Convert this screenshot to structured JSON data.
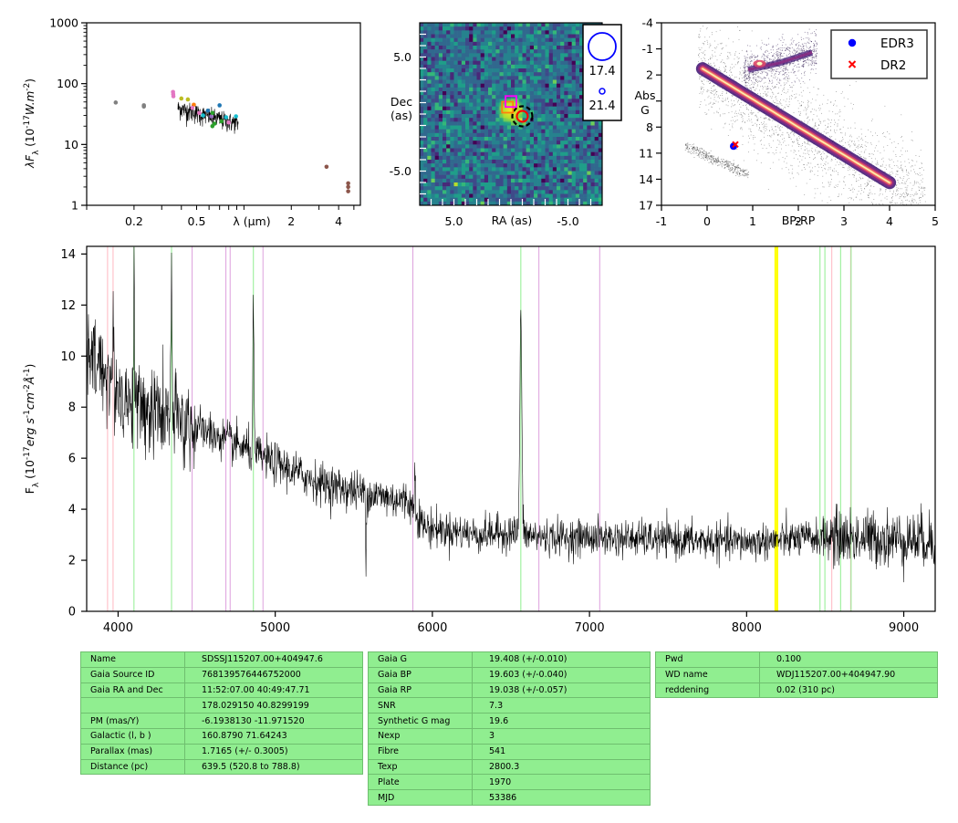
{
  "colors": {
    "spectrum_line": "#000000",
    "ha_lines": "#90ee90",
    "he_lines": "#dda0dd",
    "fe_lines": "#ffb6c1",
    "sky_band": "#ffff00",
    "table_bg": "#90ee90",
    "edr3_marker": "#0000ff",
    "dr2_marker": "#ff0000"
  },
  "chart_data": [
    {
      "type": "scatter",
      "panel": "sed",
      "xlabel": "λ (μm)",
      "ylabel": "λF_λ (10^-17 W.m^-2)",
      "xscale": "log",
      "yscale": "log",
      "xlim": [
        0.1,
        5.5
      ],
      "ylim": [
        1,
        1000
      ],
      "x_ticks": [
        0.2,
        0.5,
        2,
        4
      ],
      "x_tick_labels": [
        "0.2",
        "0.5",
        "2",
        "4"
      ],
      "y_ticks": [
        1,
        10,
        100,
        1000
      ],
      "y_tick_labels": [
        "1",
        "10",
        "100",
        "1000"
      ],
      "points": [
        {
          "x": 0.153,
          "y": 49,
          "color": "#808080"
        },
        {
          "x": 0.231,
          "y": 42,
          "color": "#808080"
        },
        {
          "x": 0.231,
          "y": 44,
          "color": "#808080"
        },
        {
          "x": 0.354,
          "y": 73,
          "color": "#e377c2"
        },
        {
          "x": 0.355,
          "y": 67,
          "color": "#e377c2"
        },
        {
          "x": 0.356,
          "y": 62,
          "color": "#e377c2"
        },
        {
          "x": 0.4,
          "y": 57,
          "color": "#bcbd22"
        },
        {
          "x": 0.44,
          "y": 55,
          "color": "#bcbd22"
        },
        {
          "x": 0.48,
          "y": 45,
          "color": "#ff7f0e"
        },
        {
          "x": 0.47,
          "y": 40,
          "color": "#e377c2"
        },
        {
          "x": 0.52,
          "y": 33,
          "color": "#e377c2"
        },
        {
          "x": 0.55,
          "y": 30,
          "color": "#17becf"
        },
        {
          "x": 0.59,
          "y": 36,
          "color": "#1f77b4"
        },
        {
          "x": 0.62,
          "y": 29,
          "color": "#9467bd"
        },
        {
          "x": 0.63,
          "y": 33,
          "color": "#2ca02c"
        },
        {
          "x": 0.63,
          "y": 20,
          "color": "#2ca02c"
        },
        {
          "x": 0.65,
          "y": 22,
          "color": "#2ca02c"
        },
        {
          "x": 0.7,
          "y": 44,
          "color": "#1f77b4"
        },
        {
          "x": 0.72,
          "y": 24,
          "color": "#2ca02c"
        },
        {
          "x": 0.77,
          "y": 28,
          "color": "#17becf"
        },
        {
          "x": 0.8,
          "y": 23,
          "color": "#e377c2"
        },
        {
          "x": 0.89,
          "y": 29,
          "color": "#17becf"
        },
        {
          "x": 3.35,
          "y": 4.3,
          "color": "#8c564b"
        },
        {
          "x": 4.6,
          "y": 2.3,
          "color": "#8c564b"
        },
        {
          "x": 4.6,
          "y": 2.0,
          "color": "#8c564b"
        },
        {
          "x": 4.6,
          "y": 1.7,
          "color": "#8c564b"
        }
      ],
      "spectrum_overlay": {
        "x_start": 0.38,
        "x_end": 0.92,
        "y_start": 40,
        "y_end": 22
      }
    },
    {
      "type": "heatmap",
      "panel": "image-cutout",
      "xlabel": "RA (as)",
      "ylabel": "Dec\n(as)",
      "xlim": [
        8,
        -8
      ],
      "ylim": [
        -8,
        8
      ],
      "x_tick_labels": [
        "5.0",
        "-5.0"
      ],
      "y_tick_labels": [
        "5.0",
        "-5.0"
      ],
      "source_marks": [
        {
          "shape": "dashed-circle",
          "x": -1.0,
          "y": -0.2,
          "color": "#000000"
        },
        {
          "shape": "circle",
          "x": -1.0,
          "y": -0.2,
          "color": "#ff0000"
        },
        {
          "shape": "square",
          "x": 0.3,
          "y": 0.6,
          "color": "#ff7f0e"
        },
        {
          "shape": "square",
          "x": 0.0,
          "y": 1.1,
          "color": "#ff00ff"
        }
      ],
      "magnitude_legend": [
        {
          "label": "17.4",
          "size": "large"
        },
        {
          "label": "21.4",
          "size": "small"
        }
      ]
    },
    {
      "type": "scatter",
      "panel": "hr-diagram",
      "xlabel": "BP-RP",
      "ylabel": "Abs\nG",
      "xlim": [
        -1,
        5
      ],
      "ylim": [
        17,
        -4
      ],
      "x_ticks": [
        -1,
        0,
        1,
        2,
        3,
        4,
        5
      ],
      "x_tick_labels": [
        "-1",
        "0",
        "1",
        "2",
        "3",
        "4",
        "5"
      ],
      "y_ticks": [
        -4,
        -1,
        2,
        5,
        8,
        11,
        14,
        17
      ],
      "y_tick_labels": [
        "-4",
        "-1",
        "2",
        "",
        "8",
        "11",
        "14",
        "17"
      ],
      "legend": {
        "position": "top-right",
        "entries": [
          "EDR3",
          "DR2"
        ]
      },
      "points": [
        {
          "series": "EDR3",
          "x": 0.58,
          "y": 10.2
        },
        {
          "series": "DR2",
          "x": 0.62,
          "y": 10.0
        }
      ]
    },
    {
      "type": "line",
      "panel": "spectrum",
      "xlabel": "",
      "ylabel": "F_λ (10^-17 erg s^-1 cm^-2 Å^-1)",
      "xlim": [
        3800,
        9200
      ],
      "ylim": [
        0,
        14.3
      ],
      "x_ticks": [
        4000,
        5000,
        6000,
        7000,
        8000,
        9000
      ],
      "x_tick_labels": [
        "4000",
        "5000",
        "6000",
        "7000",
        "8000",
        "9000"
      ],
      "y_ticks": [
        0,
        2,
        4,
        6,
        8,
        10,
        12,
        14
      ],
      "y_tick_labels": [
        "0",
        "2",
        "4",
        "6",
        "8",
        "10",
        "12",
        "14"
      ],
      "continuum_knots": [
        [
          3800,
          9.8
        ],
        [
          3900,
          9.6
        ],
        [
          4000,
          8.6
        ],
        [
          4100,
          8.0
        ],
        [
          4300,
          7.7
        ],
        [
          4500,
          7.2
        ],
        [
          4800,
          6.4
        ],
        [
          5000,
          5.8
        ],
        [
          5300,
          5.0
        ],
        [
          5600,
          4.6
        ],
        [
          5850,
          4.3
        ],
        [
          5950,
          3.3
        ],
        [
          6300,
          3.0
        ],
        [
          6500,
          3.1
        ],
        [
          6700,
          2.9
        ],
        [
          7000,
          2.9
        ],
        [
          7500,
          2.8
        ],
        [
          8000,
          2.7
        ],
        [
          8500,
          2.9
        ],
        [
          9200,
          2.8
        ]
      ],
      "emission_peaks": [
        [
          3970,
          10.5
        ],
        [
          4101,
          12.9
        ],
        [
          4340,
          12.7
        ],
        [
          4861,
          11.9
        ],
        [
          5890,
          5.6
        ],
        [
          6563,
          11.6
        ]
      ],
      "absorption_dips": [
        [
          5577,
          1.6
        ]
      ],
      "reference_lines": [
        {
          "x": 3933,
          "kind": "fe"
        },
        {
          "x": 3968,
          "kind": "fe"
        },
        {
          "x": 4101,
          "kind": "ha"
        },
        {
          "x": 4340,
          "kind": "ha"
        },
        {
          "x": 4471,
          "kind": "he"
        },
        {
          "x": 4686,
          "kind": "he"
        },
        {
          "x": 4713,
          "kind": "he"
        },
        {
          "x": 4861,
          "kind": "ha"
        },
        {
          "x": 4922,
          "kind": "he"
        },
        {
          "x": 5876,
          "kind": "he"
        },
        {
          "x": 6563,
          "kind": "ha"
        },
        {
          "x": 6678,
          "kind": "he"
        },
        {
          "x": 7065,
          "kind": "he"
        },
        {
          "x": 8183,
          "kind": "sky"
        },
        {
          "x": 8195,
          "kind": "sky"
        },
        {
          "x": 8467,
          "kind": "ha"
        },
        {
          "x": 8498,
          "kind": "ha"
        },
        {
          "x": 8542,
          "kind": "fe"
        },
        {
          "x": 8598,
          "kind": "ha"
        },
        {
          "x": 8662,
          "kind": "fe"
        },
        {
          "x": 8665,
          "kind": "ha"
        }
      ]
    }
  ],
  "tables": [
    {
      "rows": [
        [
          "Name",
          "SDSSJ115207.00+404947.6"
        ],
        [
          "Gaia Source ID",
          "768139576446752000"
        ],
        [
          "Gaia RA and Dec",
          "11:52:07.00    40:49:47.71"
        ],
        [
          "",
          "178.029150    40.8299199"
        ],
        [
          "PM (mas/Y)",
          "-6.1938130    -11.971520"
        ],
        [
          "Galactic (l, b )",
          "160.8790    71.64243"
        ],
        [
          "Parallax (mas)",
          "1.7165 (+/- 0.3005)"
        ],
        [
          "Distance (pc)",
          "639.5 (520.8 to 788.8)"
        ]
      ]
    },
    {
      "rows": [
        [
          "Gaia G",
          "19.408 (+/-0.010)"
        ],
        [
          "Gaia BP",
          "19.603 (+/-0.040)"
        ],
        [
          "Gaia RP",
          "19.038 (+/-0.057)"
        ],
        [
          "SNR",
          "7.3"
        ],
        [
          "Synthetic G mag",
          "19.6"
        ],
        [
          "Nexp",
          "3"
        ],
        [
          "Fibre",
          "541"
        ],
        [
          "Texp",
          "2800.3"
        ],
        [
          "Plate",
          "1970"
        ],
        [
          "MJD",
          "53386"
        ]
      ]
    },
    {
      "rows": [
        [
          "Pwd",
          "0.100"
        ],
        [
          "WD name",
          "WDJ115207.00+404947.90"
        ],
        [
          "reddening",
          "0.02 (310 pc)"
        ]
      ]
    }
  ]
}
